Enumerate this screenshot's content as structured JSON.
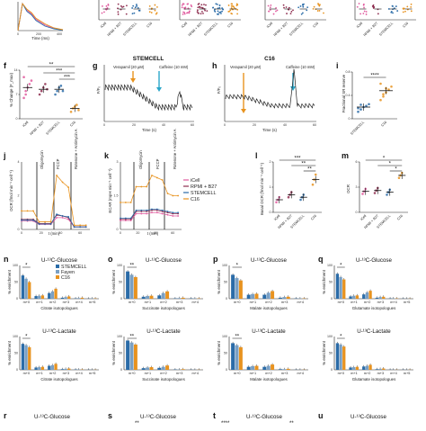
{
  "colors": {
    "ipsc": "#e05a9e",
    "rpmi": "#8e2d4f",
    "stemcell": "#2b6ca8",
    "fayen": "#7aa0c4",
    "c16": "#e8931f",
    "trace": "#222222"
  },
  "categories_4": [
    "iCell",
    "RPMI + B27",
    "STEMCELL",
    "C16"
  ],
  "categories_2": [
    "STEMCELL",
    "C16"
  ],
  "row1": {
    "xlabel": "Time (ms)",
    "xticks": [
      "0",
      "200",
      "400"
    ]
  },
  "panels": {
    "f": {
      "label": "f",
      "ylabel": "% Change (F_max)",
      "stars": [
        "**",
        "***",
        "***"
      ]
    },
    "g": {
      "label": "g",
      "title": "STEMCELL",
      "ylabel": "F/F₀",
      "xlabel": "Time (s)",
      "ann1": "Verapamil (20 µM)",
      "ann2": "Caffeine (10 mM)",
      "xticks": [
        "0",
        "20",
        "40",
        "60"
      ]
    },
    "h": {
      "label": "h",
      "title": "C16",
      "ylabel": "F/F₀",
      "xlabel": "Time (s)",
      "ann1": "Verapamil (20 µM)",
      "ann2": "Caffeine (10 mM)",
      "xticks": [
        "0",
        "20",
        "40",
        "60"
      ]
    },
    "i": {
      "label": "i",
      "ylabel": "Fractional SR reserve",
      "stars": [
        "****"
      ]
    },
    "j": {
      "label": "j",
      "ylabel": "OCR (fmol min⁻¹ cell⁻¹)",
      "xlabel": "t (min)",
      "ann1": "Oligomycin",
      "ann2": "FCCP",
      "ann3": "Rotenone + Antimycin A",
      "xticks": [
        "0",
        "20",
        "40",
        "60"
      ]
    },
    "k": {
      "label": "k",
      "ylabel": "ECAR (mpH min⁻¹ cell⁻¹)",
      "xlabel": "t (min)",
      "ann1": "Oligomycin",
      "ann2": "FCCP",
      "ann3": "Rotenone + Antimycin A",
      "xticks": [
        "0",
        "20",
        "40",
        "60"
      ],
      "legend": [
        "iCell",
        "RPMI + B27",
        "STEMCELL",
        "C16"
      ]
    },
    "l": {
      "label": "l",
      "ylabel": "Basal OCR (fmol min⁻¹ cell⁻¹)",
      "stars": [
        "***",
        "**",
        "**"
      ]
    },
    "m": {
      "label": "m",
      "ylabel": "OCR",
      "stars": [
        "*",
        "*",
        "*"
      ]
    },
    "n": {
      "label": "n",
      "title": "U-¹³C-Glucose",
      "xlabel": "Citrate isotopologues",
      "stars": [
        "*"
      ],
      "legend": [
        "STEMCELL",
        "Fayen",
        "C16"
      ]
    },
    "o": {
      "label": "o",
      "title": "U-¹³C-Glucose",
      "xlabel": "Succinate isotopologues",
      "stars": [
        "**"
      ]
    },
    "p": {
      "label": "p",
      "title": "U-¹³C-Glucose",
      "xlabel": "Malate isotopologues",
      "stars": [
        "*"
      ]
    },
    "q": {
      "label": "q",
      "title": "U-¹³C-Glucose",
      "xlabel": "Glutamate isotopologues",
      "stars": [
        "*"
      ]
    },
    "n2": {
      "title": "U-¹³C-Lactate",
      "xlabel": "Citrate isotopologues",
      "stars": [
        "*"
      ]
    },
    "o2": {
      "title": "U-¹³C-Lactate",
      "xlabel": "Succinate isotopologues",
      "stars": [
        "**"
      ]
    },
    "p2": {
      "title": "U-¹³C-Lactate",
      "xlabel": "Malate isotopologues",
      "stars": [
        "**"
      ]
    },
    "q2": {
      "title": "U-¹³C-Lactate",
      "xlabel": "Glutamate isotopologues",
      "stars": [
        "*"
      ]
    },
    "r": {
      "label": "r",
      "title": "U-¹³C-Glucose"
    },
    "s": {
      "label": "s",
      "title": "U-¹³C-Glucose",
      "stars": [
        "**"
      ]
    },
    "t": {
      "label": "t",
      "title": "U-¹³C-Glucose",
      "stars": [
        "****",
        "**"
      ]
    },
    "u": {
      "label": "u",
      "title": "U-¹³C-Glucose"
    }
  },
  "iso_ylabel": "% enrichment",
  "chart_data": [
    {
      "panel": "row1",
      "type": "line",
      "x": [
        0,
        50,
        100,
        150,
        200,
        300,
        400,
        500
      ],
      "series": [
        {
          "values": [
            0,
            10,
            0.9,
            0.75,
            0.5,
            0.25,
            0.1,
            0.03
          ]
        },
        {
          "values": [
            0,
            10,
            0.85,
            0.7,
            0.45,
            0.2,
            0.08,
            0.02
          ]
        },
        {
          "values": [
            0,
            10,
            0.95,
            0.8,
            0.55,
            0.3,
            0.12,
            0.04
          ]
        }
      ]
    },
    {
      "panel": "f",
      "type": "scatter",
      "categories": [
        "iCell",
        "RPMI + B27",
        "STEMCELL",
        "C16"
      ],
      "means": [
        9,
        8.5,
        8.5,
        3
      ],
      "ylim": [
        0,
        14
      ],
      "points": [
        [
          6,
          8,
          9,
          10,
          11,
          12,
          7
        ],
        [
          7,
          8,
          9,
          10,
          8.5
        ],
        [
          7,
          8,
          9,
          9.5,
          8
        ],
        [
          2,
          3,
          3.5,
          4,
          2.5
        ]
      ]
    },
    {
      "panel": "i",
      "type": "scatter",
      "categories": [
        "STEMCELL",
        "C16"
      ],
      "means": [
        0.2,
        0.48
      ],
      "ylim": [
        0,
        0.8
      ],
      "points": [
        [
          0.12,
          0.16,
          0.2,
          0.22,
          0.25,
          0.18,
          0.24
        ],
        [
          0.32,
          0.38,
          0.45,
          0.5,
          0.55,
          0.6,
          0.42,
          0.52
        ]
      ]
    },
    {
      "panel": "j",
      "type": "line",
      "x": [
        0,
        6,
        12,
        18,
        24,
        30,
        36,
        42,
        48,
        54,
        60,
        66
      ],
      "series": [
        {
          "values": [
            0.5,
            0.5,
            0.5,
            0.3,
            0.3,
            0.3,
            0.7,
            0.7,
            0.6,
            0.15,
            0.15,
            0.15
          ]
        },
        {
          "values": [
            0.6,
            0.6,
            0.6,
            0.35,
            0.35,
            0.35,
            0.85,
            0.8,
            0.7,
            0.15,
            0.15,
            0.15
          ]
        },
        {
          "values": [
            0.55,
            0.55,
            0.55,
            0.32,
            0.32,
            0.32,
            0.9,
            0.8,
            0.75,
            0.15,
            0.15,
            0.15
          ]
        },
        {
          "values": [
            1.1,
            1.1,
            1.1,
            0.45,
            0.45,
            0.45,
            3.2,
            2.8,
            2.5,
            0.25,
            0.25,
            0.25
          ]
        }
      ]
    },
    {
      "panel": "k",
      "type": "line",
      "x": [
        0,
        6,
        12,
        18,
        24,
        30,
        36,
        42,
        48,
        54,
        60,
        66
      ],
      "series": [
        {
          "values": [
            0.4,
            0.4,
            0.4,
            0.7,
            0.7,
            0.7,
            0.75,
            0.75,
            0.7,
            0.65,
            0.6,
            0.6
          ]
        },
        {
          "values": [
            0.45,
            0.45,
            0.45,
            0.8,
            0.8,
            0.8,
            0.85,
            0.85,
            0.8,
            0.75,
            0.7,
            0.7
          ]
        },
        {
          "values": [
            0.5,
            0.5,
            0.5,
            0.85,
            0.85,
            0.85,
            0.9,
            0.9,
            0.85,
            0.8,
            0.75,
            0.75
          ]
        },
        {
          "values": [
            1.2,
            1.2,
            1.2,
            1.9,
            1.9,
            1.9,
            2.4,
            2.3,
            2.2,
            1.6,
            1.5,
            1.5
          ]
        }
      ]
    },
    {
      "panel": "l",
      "type": "scatter",
      "categories": [
        "iCell",
        "RPMI + B27",
        "STEMCELL",
        "C16"
      ],
      "means": [
        0.5,
        0.7,
        0.6,
        1.3
      ],
      "ylim": [
        0,
        2
      ],
      "points": [
        [
          0.4,
          0.5,
          0.6
        ],
        [
          0.6,
          0.7,
          0.8
        ],
        [
          0.5,
          0.6,
          0.7
        ],
        [
          1.1,
          1.3,
          1.5
        ]
      ]
    },
    {
      "panel": "m",
      "type": "scatter",
      "categories": [
        "iCell",
        "RPMI + B27",
        "STEMCELL",
        "C16"
      ],
      "means": [
        2.5,
        2.6,
        2.4,
        4.4
      ],
      "ylim": [
        0,
        6
      ],
      "points": [
        [
          2.2,
          2.5,
          2.8
        ],
        [
          2.3,
          2.6,
          2.9
        ],
        [
          2.1,
          2.4,
          2.7
        ],
        [
          4.1,
          4.4,
          4.7
        ]
      ]
    },
    {
      "panel": "n",
      "type": "bar",
      "categories": [
        "m+0",
        "m+1",
        "m+2",
        "m+3",
        "m+4",
        "m+5"
      ],
      "ylim": [
        0,
        100
      ],
      "series": [
        {
          "name": "STEMCELL",
          "values": [
            70,
            8,
            17,
            3,
            1,
            0.5
          ]
        },
        {
          "name": "Fayen",
          "values": [
            60,
            9,
            22,
            5,
            2,
            1
          ]
        },
        {
          "name": "C16",
          "values": [
            50,
            10,
            30,
            7,
            3,
            1
          ]
        }
      ]
    },
    {
      "panel": "o",
      "type": "bar",
      "categories": [
        "m+0",
        "m+1",
        "m+2",
        "m+3",
        "m+4"
      ],
      "ylim": [
        0,
        100
      ],
      "series": [
        {
          "values": [
            82,
            6,
            10,
            1,
            1
          ]
        },
        {
          "values": [
            72,
            8,
            17,
            2,
            1
          ]
        },
        {
          "values": [
            65,
            9,
            22,
            3,
            1
          ]
        }
      ]
    },
    {
      "panel": "p",
      "type": "bar",
      "categories": [
        "m+0",
        "m+1",
        "m+2",
        "m+3",
        "m+4"
      ],
      "ylim": [
        0,
        100
      ],
      "series": [
        {
          "values": [
            72,
            12,
            12,
            3,
            1
          ]
        },
        {
          "values": [
            62,
            14,
            18,
            5,
            1
          ]
        },
        {
          "values": [
            55,
            15,
            23,
            6,
            1
          ]
        }
      ]
    },
    {
      "panel": "q",
      "type": "bar",
      "categories": [
        "m+0",
        "m+1",
        "m+2",
        "m+3",
        "m+4",
        "m+5"
      ],
      "ylim": [
        0,
        100
      ],
      "series": [
        {
          "values": [
            75,
            7,
            13,
            3,
            1,
            0.5
          ]
        },
        {
          "values": [
            65,
            9,
            19,
            5,
            1,
            0.5
          ]
        },
        {
          "values": [
            58,
            10,
            24,
            6,
            1,
            0.5
          ]
        }
      ]
    },
    {
      "panel": "n2",
      "type": "bar",
      "categories": [
        "m+0",
        "m+1",
        "m+2",
        "m+3",
        "m+4",
        "m+5"
      ],
      "ylim": [
        0,
        100
      ],
      "series": [
        {
          "values": [
            78,
            7,
            12,
            2,
            1,
            0.5
          ]
        },
        {
          "values": [
            74,
            8,
            14,
            3,
            1,
            0.5
          ]
        },
        {
          "values": [
            68,
            9,
            18,
            4,
            1,
            0.5
          ]
        }
      ]
    },
    {
      "panel": "o2",
      "type": "bar",
      "categories": [
        "m+0",
        "m+1",
        "m+2",
        "m+3",
        "m+4"
      ],
      "ylim": [
        0,
        100
      ],
      "series": [
        {
          "values": [
            88,
            5,
            6,
            1,
            0.5
          ]
        },
        {
          "values": [
            82,
            7,
            9,
            1,
            0.5
          ]
        },
        {
          "values": [
            76,
            8,
            13,
            2,
            0.5
          ]
        }
      ]
    },
    {
      "panel": "p2",
      "type": "bar",
      "categories": [
        "m+0",
        "m+1",
        "m+2",
        "m+3",
        "m+4"
      ],
      "ylim": [
        0,
        100
      ],
      "series": [
        {
          "values": [
            80,
            9,
            9,
            2,
            0.5
          ]
        },
        {
          "values": [
            74,
            11,
            12,
            2,
            0.5
          ]
        },
        {
          "values": [
            68,
            12,
            16,
            3,
            0.5
          ]
        }
      ]
    },
    {
      "panel": "q2",
      "type": "bar",
      "categories": [
        "m+0",
        "m+1",
        "m+2",
        "m+3",
        "m+4",
        "m+5"
      ],
      "ylim": [
        0,
        100
      ],
      "series": [
        {
          "values": [
            80,
            7,
            10,
            2,
            0.5,
            0.5
          ]
        },
        {
          "values": [
            76,
            8,
            12,
            3,
            0.5,
            0.5
          ]
        },
        {
          "values": [
            70,
            9,
            15,
            4,
            0.5,
            0.5
          ]
        }
      ]
    }
  ]
}
